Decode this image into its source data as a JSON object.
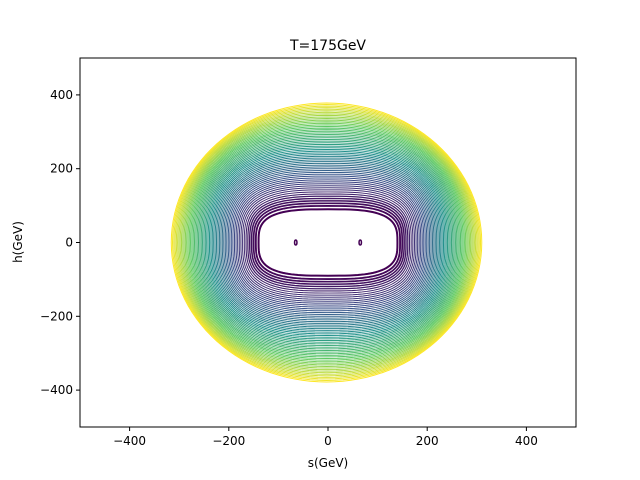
{
  "chart_data": {
    "type": "contour",
    "title": "T=175GeV",
    "xlabel": "s(GeV)",
    "ylabel": "h(GeV)",
    "xlim": [
      -500,
      500
    ],
    "ylim": [
      -500,
      500
    ],
    "xticks": [
      -400,
      -200,
      0,
      200,
      400
    ],
    "yticks": [
      -400,
      -200,
      0,
      200,
      400
    ],
    "xtick_labels": [
      "−400",
      "−200",
      "0",
      "200",
      "400"
    ],
    "ytick_labels": [
      "−400",
      "−200",
      "0",
      "200",
      "400"
    ],
    "grid": false,
    "colormap": "viridis",
    "colormap_colors": [
      "#440154",
      "#3b528b",
      "#21918c",
      "#5ec962",
      "#fde725"
    ],
    "minima": [
      {
        "s": -65,
        "h": 0
      },
      {
        "s": 65,
        "h": 0
      }
    ],
    "contours": {
      "count": 60,
      "inner": {
        "center_s": 0,
        "center_h": 0,
        "half_width_s": 140,
        "half_height_h": 90
      },
      "outer": {
        "center_s": -3,
        "center_h": 0,
        "half_width_s": 313,
        "half_height_h": 378
      }
    }
  }
}
